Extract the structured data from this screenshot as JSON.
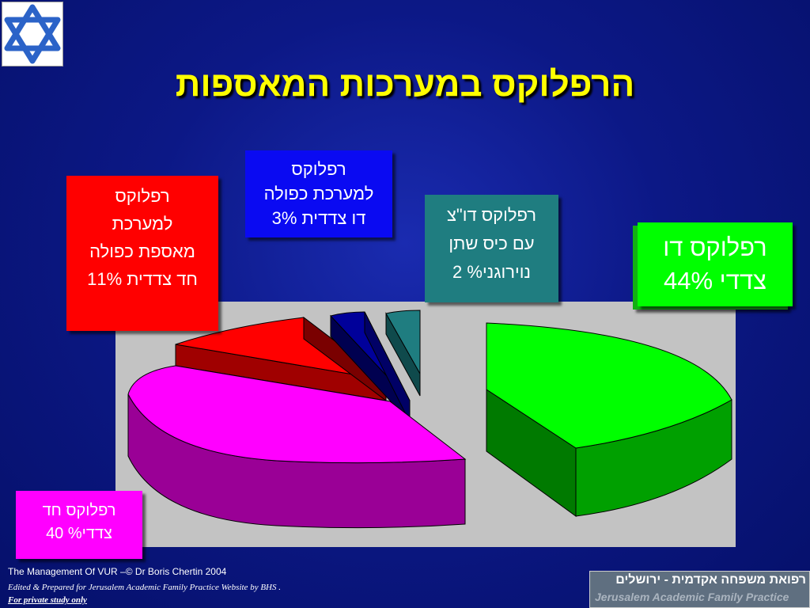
{
  "title": "הרפלוקס במערכות המאספות",
  "logo": {
    "icon": "star-of-david-icon",
    "color": "#2b63c8"
  },
  "chart_data": {
    "type": "pie",
    "style": "3d-exploded",
    "series": [
      {
        "label_lines": [
          "רפלוקס דו",
          "צדדי 44%"
        ],
        "value": 44,
        "color": "#00ff00",
        "side_color": "#00a000"
      },
      {
        "label_lines": [
          "רפלוקס חד",
          "צדדי% 40"
        ],
        "value": 40,
        "color": "#ff00ff",
        "side_color": "#9a0096"
      },
      {
        "label_lines": [
          "רפלוקס",
          "למערכת",
          "מאספת כפולה",
          "חד צדדית 11%"
        ],
        "value": 11,
        "color": "#ff0000",
        "side_color": "#a00000"
      },
      {
        "label_lines": [
          "רפלוקס",
          "למערכת כפולה",
          "דו צדדית 3%"
        ],
        "value": 3,
        "color": "#00009a",
        "side_color": "#000050"
      },
      {
        "label_lines": [
          "רפלוקס דו\"צ",
          "עם כיס שתן",
          "נוירוגני% 2"
        ],
        "value": 2,
        "color": "#1f7d80",
        "side_color": "#0f4a4c"
      }
    ]
  },
  "footer": {
    "line1": "The Management Of VUR –© Dr Boris Chertin 2004",
    "line2": "Edited & Prepared for Jerusalem Academic Family Practice Website by BHS .",
    "line3": "For private study only"
  },
  "banner": {
    "hebrew": "רפואת משפחה אקדמית - ירושלים",
    "english": "Jerusalem Academic Family Practice"
  }
}
